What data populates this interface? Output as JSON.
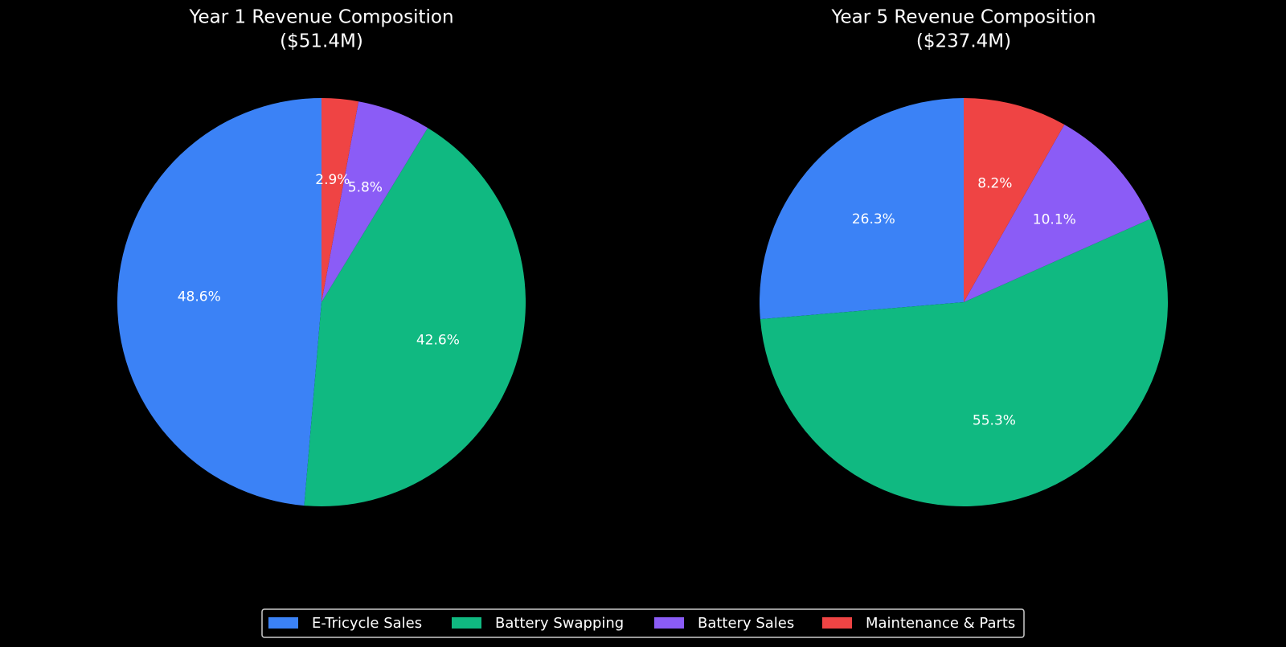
{
  "chart_data": [
    {
      "type": "pie",
      "title": [
        "Year 1 Revenue Composition",
        "($51.4M)"
      ],
      "categories": [
        "E-Tricycle Sales",
        "Battery Swapping",
        "Battery Sales",
        "Maintenance & Parts"
      ],
      "values": [
        48.6,
        42.6,
        5.8,
        2.9
      ],
      "value_labels": [
        "48.6%",
        "42.6%",
        "5.8%",
        "2.9%"
      ],
      "colors": [
        "#3b82f6",
        "#10b981",
        "#8b5cf6",
        "#ef4444"
      ]
    },
    {
      "type": "pie",
      "title": [
        "Year 5 Revenue Composition",
        "($237.4M)"
      ],
      "categories": [
        "E-Tricycle Sales",
        "Battery Swapping",
        "Battery Sales",
        "Maintenance & Parts"
      ],
      "values": [
        26.3,
        55.3,
        10.1,
        8.2
      ],
      "value_labels": [
        "26.3%",
        "55.3%",
        "10.1%",
        "8.2%"
      ],
      "colors": [
        "#3b82f6",
        "#10b981",
        "#8b5cf6",
        "#ef4444"
      ]
    }
  ]
}
